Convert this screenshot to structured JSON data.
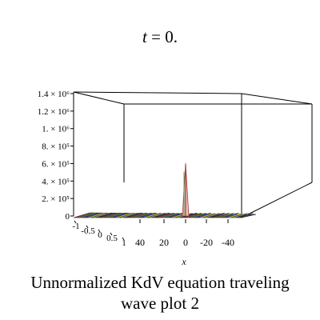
{
  "chart_data": {
    "type": "surface",
    "title": "t = 0.",
    "caption": "Unnormalized KdV equation  traveling wave plot 2",
    "xlabel": "x",
    "z_ticks": [
      {
        "value": 0,
        "label": "0"
      },
      {
        "value": 200000,
        "label": "2. × 10⁵"
      },
      {
        "value": 400000,
        "label": "4. × 10⁵"
      },
      {
        "value": 600000,
        "label": "6. × 10⁵"
      },
      {
        "value": 800000,
        "label": "8. × 10⁵"
      },
      {
        "value": 1000000,
        "label": "1. × 10⁶"
      },
      {
        "value": 1200000,
        "label": "1.2 × 10⁶"
      },
      {
        "value": 1400000,
        "label": "1.4 × 10⁶"
      }
    ],
    "x_ticks": [
      "40",
      "20",
      "0",
      "-20",
      "-40"
    ],
    "y_ticks": [
      "-1",
      "-0.5",
      "0",
      "0.5",
      "1"
    ],
    "xlim": [
      -50,
      50
    ],
    "ylim": [
      -1,
      1
    ],
    "zlim": [
      0,
      1400000
    ],
    "peak": {
      "x": 0,
      "z": 600000
    },
    "surface_colors": [
      "#b33a3a",
      "#3a9a3a",
      "#3a3ab8",
      "#d4d400",
      "#999999",
      "#2f2f2f"
    ]
  }
}
